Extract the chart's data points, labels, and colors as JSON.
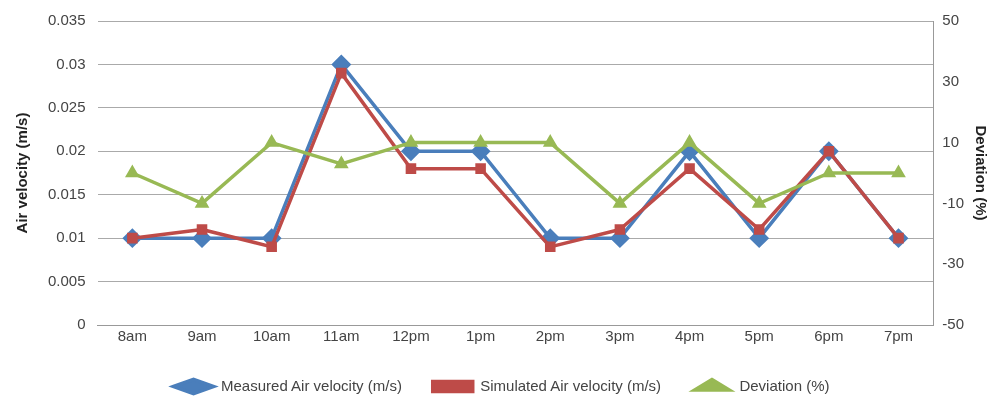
{
  "chart_data": {
    "type": "line",
    "ylabel": "Air velocity (m/s)",
    "y2label": "Deviation (%)",
    "categories": [
      "8am",
      "9am",
      "10am",
      "11am",
      "12pm",
      "1pm",
      "2pm",
      "3pm",
      "4pm",
      "5pm",
      "6pm",
      "7pm"
    ],
    "series": [
      {
        "name": "Measured Air velocity (m/s)",
        "color": "#4a7ebb",
        "marker": "diamond",
        "values": [
          0.01,
          0.01,
          0.01,
          0.03,
          0.02,
          0.02,
          0.01,
          0.01,
          0.02,
          0.01,
          0.02,
          0.01
        ]
      },
      {
        "name": "Simulated Air velocity (m/s)",
        "color": "#be4b48",
        "marker": "square",
        "values": [
          0.01,
          0.011,
          0.009,
          0.029,
          0.018,
          0.018,
          0.009,
          0.011,
          0.018,
          0.011,
          0.02,
          0.01
        ]
      },
      {
        "name": "Deviation (%)",
        "color": "#98b954",
        "marker": "triangle",
        "axis": "y2",
        "values": [
          0,
          -10,
          10,
          3,
          10,
          10,
          10,
          -10,
          10,
          -10,
          0,
          0
        ]
      }
    ],
    "ylim": [
      0,
      0.035
    ],
    "yticks": [
      0,
      0.005,
      0.01,
      0.015,
      0.02,
      0.025,
      0.03,
      0.035
    ],
    "y2lim": [
      -50,
      50
    ],
    "y2ticks": [
      -50,
      -30,
      -10,
      10,
      30,
      50
    ],
    "grid": "y",
    "legend": "bottom",
    "line_style": "solid"
  }
}
